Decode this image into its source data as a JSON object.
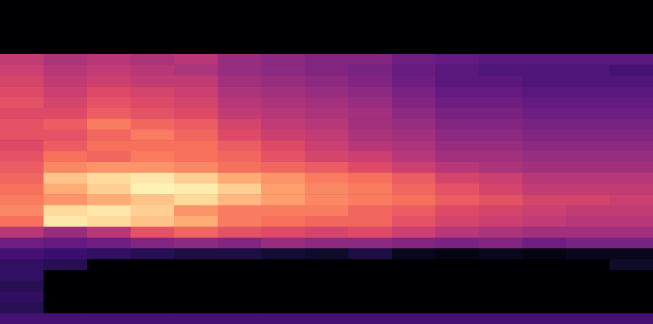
{
  "chart_data": {
    "type": "heatmap",
    "tick_labels": false,
    "color_range": [
      -80,
      0
    ],
    "cells": [
      [
        -80,
        -80,
        -80,
        -80,
        -80,
        -80,
        -80,
        -80,
        -80,
        -80,
        -80,
        -80,
        -80,
        -80,
        -80
      ],
      [
        -80,
        -80,
        -80,
        -80,
        -80,
        -80,
        -80,
        -80,
        -80,
        -80,
        -80,
        -80,
        -80,
        -80,
        -80
      ],
      [
        -80,
        -80,
        -80,
        -80,
        -80,
        -80,
        -80,
        -80,
        -80,
        -80,
        -80,
        -80,
        -80,
        -80,
        -80
      ],
      [
        -80,
        -80,
        -80,
        -80,
        -80,
        -80,
        -80,
        -80,
        -80,
        -80,
        -80,
        -80,
        -80,
        -80,
        -80
      ],
      [
        -80,
        -80,
        -80,
        -80,
        -80,
        -80,
        -80,
        -80,
        -80,
        -80,
        -80,
        -80,
        -80,
        -80,
        -80
      ],
      [
        -38,
        -42,
        -40,
        -42,
        -40,
        -46,
        -48,
        -50,
        -50,
        -54,
        -56,
        -58,
        -58,
        -58,
        -58
      ],
      [
        -36,
        -40,
        -38,
        -40,
        -42,
        -46,
        -48,
        -50,
        -52,
        -55,
        -58,
        -60,
        -60,
        -60,
        -62
      ],
      [
        -34,
        -38,
        -36,
        -38,
        -38,
        -44,
        -46,
        -48,
        -50,
        -54,
        -58,
        -58,
        -60,
        -60,
        -60
      ],
      [
        -32,
        -36,
        -32,
        -34,
        -36,
        -42,
        -44,
        -46,
        -48,
        -52,
        -56,
        -56,
        -58,
        -58,
        -58
      ],
      [
        -30,
        -34,
        -30,
        -32,
        -34,
        -40,
        -42,
        -44,
        -46,
        -50,
        -54,
        -54,
        -56,
        -56,
        -56
      ],
      [
        -32,
        -32,
        -28,
        -30,
        -32,
        -38,
        -40,
        -42,
        -44,
        -48,
        -52,
        -52,
        -54,
        -54,
        -54
      ],
      [
        -30,
        -28,
        -22,
        -26,
        -28,
        -34,
        -38,
        -40,
        -44,
        -46,
        -50,
        -50,
        -52,
        -52,
        -52
      ],
      [
        -30,
        -30,
        -26,
        -22,
        -26,
        -32,
        -36,
        -38,
        -42,
        -44,
        -48,
        -48,
        -50,
        -50,
        -50
      ],
      [
        -32,
        -28,
        -24,
        -24,
        -24,
        -28,
        -32,
        -36,
        -40,
        -42,
        -46,
        -46,
        -48,
        -48,
        -48
      ],
      [
        -30,
        -24,
        -26,
        -22,
        -24,
        -26,
        -30,
        -34,
        -36,
        -40,
        -44,
        -44,
        -46,
        -46,
        -46
      ],
      [
        -28,
        -20,
        -18,
        -18,
        -20,
        -24,
        -26,
        -28,
        -32,
        -36,
        -40,
        -42,
        -44,
        -44,
        -44
      ],
      [
        -26,
        -10,
        -6,
        -4,
        -8,
        -14,
        -18,
        -22,
        -24,
        -28,
        -34,
        -36,
        -40,
        -40,
        -40
      ],
      [
        -24,
        -14,
        -8,
        -2,
        -3,
        -8,
        -16,
        -20,
        -22,
        -26,
        -30,
        -34,
        -38,
        -38,
        -38
      ],
      [
        -22,
        -18,
        -14,
        -10,
        -6,
        -12,
        -16,
        -20,
        -22,
        -24,
        -28,
        -30,
        -34,
        -34,
        -36
      ],
      [
        -20,
        -6,
        -4,
        -8,
        -18,
        -22,
        -22,
        -22,
        -26,
        -28,
        -32,
        -34,
        -36,
        -38,
        -38
      ],
      [
        -24,
        -4,
        -6,
        -10,
        -14,
        -22,
        -24,
        -26,
        -26,
        -30,
        -34,
        -36,
        -38,
        -40,
        -40
      ],
      [
        -40,
        -46,
        -40,
        -30,
        -26,
        -30,
        -32,
        -34,
        -32,
        -36,
        -40,
        -42,
        -44,
        -44,
        -44
      ],
      [
        -54,
        -56,
        -54,
        -50,
        -48,
        -50,
        -46,
        -48,
        -48,
        -50,
        -52,
        -50,
        -54,
        -52,
        -52
      ],
      [
        -62,
        -64,
        -66,
        -68,
        -70,
        -70,
        -72,
        -74,
        -70,
        -76,
        -78,
        -76,
        -78,
        -76,
        -76
      ],
      [
        -66,
        -68,
        -80,
        -80,
        -80,
        -80,
        -80,
        -80,
        -80,
        -80,
        -80,
        -80,
        -80,
        -80,
        -74
      ],
      [
        -66,
        -80,
        -80,
        -80,
        -80,
        -80,
        -80,
        -80,
        -80,
        -80,
        -80,
        -80,
        -80,
        -80,
        -80
      ],
      [
        -68,
        -80,
        -80,
        -80,
        -80,
        -80,
        -80,
        -80,
        -80,
        -80,
        -80,
        -80,
        -80,
        -80,
        -80
      ],
      [
        -66,
        -80,
        -80,
        -80,
        -80,
        -80,
        -80,
        -80,
        -80,
        -80,
        -80,
        -80,
        -80,
        -80,
        -80
      ],
      [
        -68,
        -80,
        -80,
        -80,
        -80,
        -80,
        -80,
        -80,
        -80,
        -80,
        -80,
        -80,
        -80,
        -80,
        -80
      ],
      [
        -62,
        -62,
        -62,
        -62,
        -62,
        -62,
        -62,
        -62,
        -62,
        -62,
        -62,
        -62,
        -62,
        -62,
        -62
      ]
    ]
  }
}
